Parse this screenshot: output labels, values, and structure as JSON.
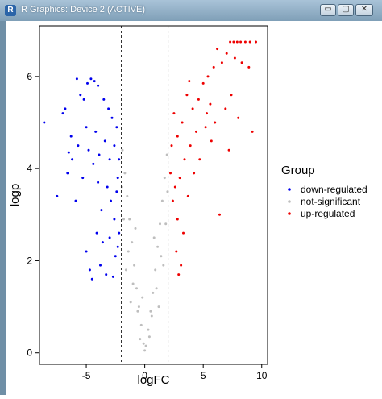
{
  "window": {
    "title": "R Graphics: Device 2 (ACTIVE)",
    "buttons": {
      "minimize": "▭",
      "maximize": "▢",
      "close": "✕"
    }
  },
  "chart_data": {
    "type": "scatter",
    "title": "",
    "xlabel": "logFC",
    "ylabel": "logp",
    "xlim": [
      -9,
      10.5
    ],
    "ylim": [
      -0.25,
      7.1
    ],
    "xticks": [
      -5,
      0,
      5,
      10
    ],
    "yticks": [
      0,
      2,
      4,
      6
    ],
    "xtick_labels": [
      "-5",
      "0",
      "5",
      "10"
    ],
    "ytick_labels": [
      "0",
      "2",
      "4",
      "6"
    ],
    "grid": false,
    "thresholds": {
      "vertical": [
        -2,
        2
      ],
      "horizontal": 1.3
    },
    "legend": {
      "title": "Group",
      "position": "right",
      "entries": [
        {
          "label": "down-regulated",
          "color": "#0000ee"
        },
        {
          "label": "not-significant",
          "color": "#bebebe"
        },
        {
          "label": "up-regulated",
          "color": "#ee0000"
        }
      ]
    },
    "series": [
      {
        "name": "down-regulated",
        "color": "#0000ee",
        "points": [
          [
            -8.6,
            5.0
          ],
          [
            -7.5,
            3.4
          ],
          [
            -7.0,
            5.2
          ],
          [
            -6.8,
            5.3
          ],
          [
            -6.5,
            4.35
          ],
          [
            -6.6,
            3.9
          ],
          [
            -6.3,
            4.7
          ],
          [
            -5.9,
            3.3
          ],
          [
            -5.8,
            5.95
          ],
          [
            -5.5,
            5.6
          ],
          [
            -5.2,
            5.5
          ],
          [
            -4.9,
            5.85
          ],
          [
            -4.6,
            5.95
          ],
          [
            -4.3,
            5.9
          ],
          [
            -4.0,
            5.8
          ],
          [
            -5.0,
            2.2
          ],
          [
            -4.7,
            1.8
          ],
          [
            -4.5,
            1.6
          ],
          [
            -4.1,
            2.6
          ],
          [
            -3.8,
            1.9
          ],
          [
            -3.6,
            2.4
          ],
          [
            -3.3,
            1.7
          ],
          [
            -3.0,
            2.5
          ],
          [
            -2.7,
            1.65
          ],
          [
            -2.5,
            2.1
          ],
          [
            -3.5,
            5.5
          ],
          [
            -3.1,
            5.3
          ],
          [
            -2.8,
            5.1
          ],
          [
            -2.4,
            4.9
          ],
          [
            -4.4,
            4.1
          ],
          [
            -4.0,
            3.7
          ],
          [
            -3.7,
            3.1
          ],
          [
            -3.2,
            3.6
          ],
          [
            -2.9,
            3.3
          ],
          [
            -2.6,
            2.9
          ],
          [
            -2.3,
            3.8
          ],
          [
            -2.2,
            4.2
          ],
          [
            -2.2,
            2.6
          ],
          [
            -6.2,
            4.2
          ],
          [
            -5.7,
            4.5
          ],
          [
            -5.3,
            3.8
          ],
          [
            -5.0,
            4.9
          ],
          [
            -4.8,
            4.4
          ],
          [
            -4.2,
            4.8
          ],
          [
            -3.9,
            4.3
          ],
          [
            -3.4,
            4.6
          ],
          [
            -3.0,
            4.2
          ],
          [
            -2.6,
            4.5
          ],
          [
            -2.4,
            3.5
          ],
          [
            -2.3,
            2.3
          ]
        ]
      },
      {
        "name": "not-significant",
        "color": "#bebebe",
        "points": [
          [
            -1.9,
            4.4
          ],
          [
            -1.7,
            3.9
          ],
          [
            -1.5,
            3.4
          ],
          [
            -1.3,
            2.9
          ],
          [
            -1.1,
            2.4
          ],
          [
            -0.9,
            1.9
          ],
          [
            -0.7,
            1.4
          ],
          [
            -0.5,
            1.0
          ],
          [
            -0.3,
            0.6
          ],
          [
            -0.1,
            0.2
          ],
          [
            0.1,
            0.15
          ],
          [
            0.3,
            0.5
          ],
          [
            0.5,
            0.9
          ],
          [
            0.7,
            1.3
          ],
          [
            0.9,
            1.8
          ],
          [
            1.1,
            2.3
          ],
          [
            1.3,
            2.8
          ],
          [
            1.5,
            3.3
          ],
          [
            1.7,
            3.8
          ],
          [
            1.9,
            4.3
          ],
          [
            -1.8,
            2.9
          ],
          [
            -1.4,
            2.2
          ],
          [
            -1.0,
            1.5
          ],
          [
            -0.6,
            0.9
          ],
          [
            0.6,
            0.8
          ],
          [
            1.0,
            1.4
          ],
          [
            1.4,
            2.1
          ],
          [
            1.8,
            2.8
          ],
          [
            -1.6,
            1.8
          ],
          [
            1.6,
            1.9
          ],
          [
            -1.2,
            1.1
          ],
          [
            1.2,
            1.0
          ],
          [
            -0.4,
            0.3
          ],
          [
            0.4,
            0.35
          ],
          [
            0.0,
            0.05
          ],
          [
            -1.95,
            3.6
          ],
          [
            1.95,
            3.5
          ],
          [
            -0.8,
            2.7
          ],
          [
            0.8,
            2.5
          ],
          [
            -0.2,
            1.2
          ]
        ]
      },
      {
        "name": "up-regulated",
        "color": "#ee0000",
        "points": [
          [
            7.3,
            6.75
          ],
          [
            7.6,
            6.75
          ],
          [
            7.9,
            6.75
          ],
          [
            8.2,
            6.75
          ],
          [
            8.6,
            6.75
          ],
          [
            9.0,
            6.75
          ],
          [
            9.5,
            6.75
          ],
          [
            7.0,
            6.5
          ],
          [
            7.7,
            6.4
          ],
          [
            8.3,
            6.3
          ],
          [
            6.2,
            6.6
          ],
          [
            6.6,
            6.3
          ],
          [
            5.9,
            6.2
          ],
          [
            5.4,
            6.0
          ],
          [
            5.0,
            5.85
          ],
          [
            6.9,
            5.3
          ],
          [
            7.4,
            5.6
          ],
          [
            8.0,
            5.1
          ],
          [
            8.9,
            6.2
          ],
          [
            9.2,
            4.8
          ],
          [
            7.2,
            4.4
          ],
          [
            6.4,
            3.0
          ],
          [
            5.7,
            4.6
          ],
          [
            5.2,
            4.9
          ],
          [
            4.6,
            5.5
          ],
          [
            4.1,
            5.3
          ],
          [
            3.6,
            5.6
          ],
          [
            3.2,
            5.0
          ],
          [
            2.8,
            4.7
          ],
          [
            2.5,
            5.2
          ],
          [
            2.3,
            4.5
          ],
          [
            2.2,
            3.9
          ],
          [
            2.4,
            3.3
          ],
          [
            2.8,
            2.9
          ],
          [
            3.3,
            2.6
          ],
          [
            3.1,
            1.9
          ],
          [
            2.7,
            2.2
          ],
          [
            2.9,
            1.7
          ],
          [
            3.7,
            3.4
          ],
          [
            4.2,
            3.9
          ],
          [
            4.7,
            4.2
          ],
          [
            3.9,
            4.5
          ],
          [
            3.4,
            4.2
          ],
          [
            3.0,
            3.8
          ],
          [
            2.6,
            3.6
          ],
          [
            5.6,
            5.4
          ],
          [
            6.0,
            5.0
          ],
          [
            4.4,
            4.8
          ],
          [
            3.8,
            5.9
          ],
          [
            5.3,
            5.2
          ]
        ]
      }
    ]
  }
}
